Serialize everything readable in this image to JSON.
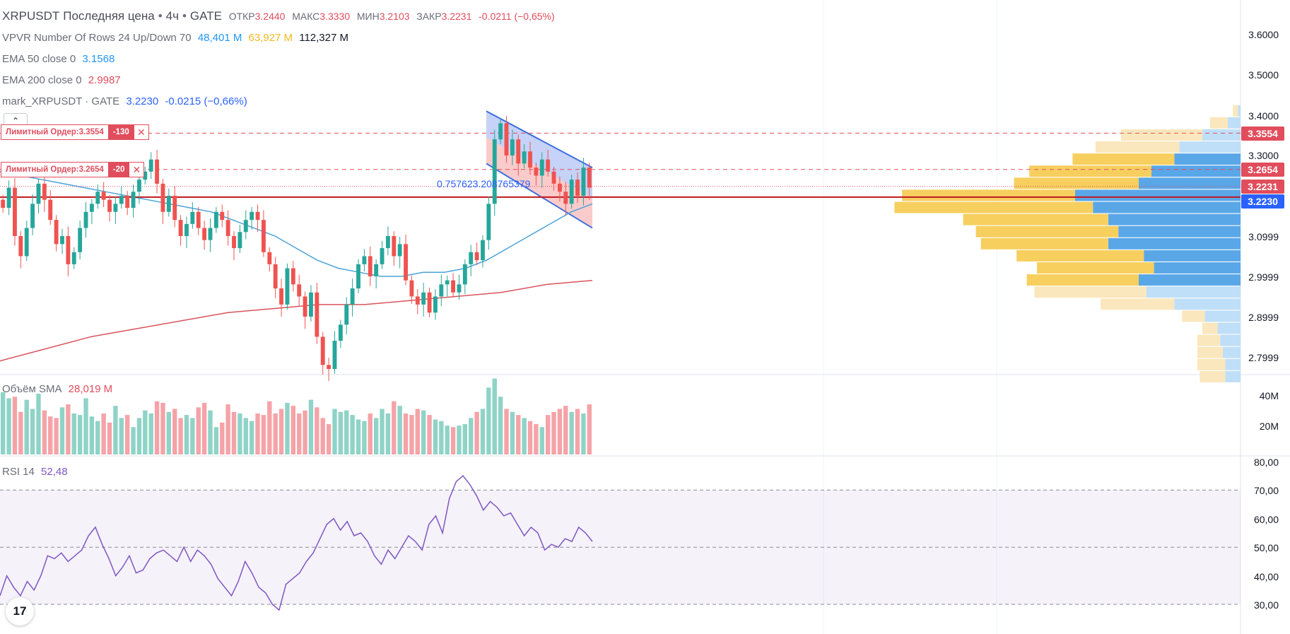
{
  "header": {
    "symbol": "XRPUSDT",
    "price_type": "Последняя цена",
    "interval": "4ч",
    "exchange": "GATE",
    "separator": "•",
    "open_label": "ОТКР",
    "open": "3.2440",
    "high_label": "МАКС",
    "high": "3.3330",
    "low_label": "МИН",
    "low": "3.2103",
    "close_label": "ЗАКР",
    "close": "3.2231",
    "change": "-0.0211 (−0,65%)"
  },
  "indicators": {
    "vpvr": {
      "label": "VPVR Number Of Rows 24 Up/Down 70",
      "up": "48,401 M",
      "down": "63,927 M",
      "total": "112,327 M"
    },
    "ema50": {
      "label": "EMA 50 close 0",
      "value": "3.1568"
    },
    "ema200": {
      "label": "EMA 200 close 0",
      "value": "2.9987"
    },
    "mark": {
      "label": "mark_XRPUSDT · GATE",
      "value": "3.2230",
      "change": "-0.0215 (−0,66%)"
    },
    "volume": {
      "label": "Объём SMA",
      "value": "28,019 M"
    },
    "rsi": {
      "label": "RSI 14",
      "value": "52,48"
    }
  },
  "orders": [
    {
      "label": "Лимитный Ордер:3.3554",
      "qty": "-130",
      "close_glyph": "✕"
    },
    {
      "label": "Лимитный Ордер:3.2654",
      "qty": "-20",
      "close_glyph": "✕"
    }
  ],
  "fib_label": "0.757623.208765379",
  "collapse_glyph": "⌃",
  "logo_text": "17",
  "price_axis": [
    "3.6000",
    "3.5000",
    "3.4000",
    "3.3000",
    "3.0999",
    "2.9999",
    "2.8999",
    "2.7999"
  ],
  "volume_axis": [
    "40M",
    "20M"
  ],
  "rsi_axis": [
    "80,00",
    "70,00",
    "60,00",
    "50,00",
    "40,00",
    "30,00"
  ],
  "price_labels": [
    {
      "value": "3.3554",
      "color": "#e14d5c"
    },
    {
      "value": "3.2654",
      "color": "#e14d5c"
    },
    {
      "value": "3.2231",
      "color": "#e14d5c"
    },
    {
      "value": "3.2230",
      "color": "#2962ff"
    }
  ],
  "colors": {
    "up": "#26a69a",
    "down": "#ef5350",
    "ema50": "#4aa3d9",
    "ema200": "#d9545c",
    "rsi": "#7e57c2",
    "vp_up": "#5aa7e8",
    "vp_down": "#f7cf5f",
    "channel": "#3d6fde"
  },
  "chart_data": [
    {
      "type": "candlestick",
      "title": "XRPUSDT Последняя цена • 4ч • GATE",
      "ylim": [
        2.76,
        3.64
      ],
      "closes": [
        3.17,
        3.22,
        3.1,
        3.05,
        3.12,
        3.18,
        3.23,
        3.19,
        3.14,
        3.08,
        3.1,
        3.03,
        3.06,
        3.12,
        3.16,
        3.18,
        3.21,
        3.19,
        3.16,
        3.18,
        3.2,
        3.17,
        3.21,
        3.24,
        3.26,
        3.29,
        3.23,
        3.16,
        3.2,
        3.14,
        3.1,
        3.13,
        3.16,
        3.12,
        3.09,
        3.12,
        3.16,
        3.14,
        3.1,
        3.07,
        3.11,
        3.14,
        3.16,
        3.14,
        3.06,
        3.03,
        2.97,
        2.93,
        3.02,
        2.98,
        2.95,
        2.9,
        2.96,
        2.85,
        2.78,
        2.77,
        2.84,
        2.88,
        2.93,
        2.97,
        3.03,
        3.05,
        3.0,
        3.03,
        3.07,
        3.1,
        3.05,
        3.08,
        2.99,
        2.95,
        2.93,
        2.96,
        2.91,
        2.95,
        2.98,
        2.99,
        2.96,
        2.98,
        3.03,
        3.06,
        3.04,
        3.09,
        3.18,
        3.34,
        3.38,
        3.3,
        3.34,
        3.28,
        3.31,
        3.27,
        3.25,
        3.29,
        3.26,
        3.23,
        3.21,
        3.18,
        3.24,
        3.2,
        3.27,
        3.22
      ],
      "ema50": [
        3.26,
        3.25,
        3.24,
        3.23,
        3.22,
        3.21,
        3.2,
        3.19,
        3.18,
        3.17,
        3.16,
        3.14,
        3.12,
        3.1,
        3.07,
        3.04,
        3.02,
        3.01,
        3.0,
        3.0,
        3.01,
        3.01,
        3.02,
        3.04,
        3.07,
        3.1,
        3.13,
        3.16,
        3.18
      ],
      "ema200": [
        2.79,
        2.82,
        2.85,
        2.87,
        2.89,
        2.91,
        2.92,
        2.93,
        2.93,
        2.94,
        2.95,
        2.96,
        2.98,
        2.99
      ],
      "channel_upper": [
        3.41,
        3.27
      ],
      "channel_lower": [
        3.28,
        3.12
      ],
      "horizontal_levels": [
        3.3554,
        3.2654,
        3.2231,
        3.223
      ],
      "volume_profile": [
        {
          "price": 3.41,
          "up": 1,
          "down": 2
        },
        {
          "price": 3.38,
          "up": 5,
          "down": 7
        },
        {
          "price": 3.35,
          "up": 15,
          "down": 32
        },
        {
          "price": 3.32,
          "up": 24,
          "down": 33
        },
        {
          "price": 3.29,
          "up": 26,
          "down": 40
        },
        {
          "price": 3.26,
          "up": 35,
          "down": 48
        },
        {
          "price": 3.23,
          "up": 40,
          "down": 49
        },
        {
          "price": 3.2,
          "up": 65,
          "down": 68
        },
        {
          "price": 3.17,
          "up": 58,
          "down": 78
        },
        {
          "price": 3.14,
          "up": 52,
          "down": 57
        },
        {
          "price": 3.11,
          "up": 48,
          "down": 56
        },
        {
          "price": 3.08,
          "up": 52,
          "down": 50
        },
        {
          "price": 3.05,
          "up": 38,
          "down": 50
        },
        {
          "price": 3.02,
          "up": 34,
          "down": 46
        },
        {
          "price": 2.99,
          "up": 40,
          "down": 44
        },
        {
          "price": 2.96,
          "up": 37,
          "down": 44
        },
        {
          "price": 2.93,
          "up": 26,
          "down": 29
        },
        {
          "price": 2.9,
          "up": 14,
          "down": 9
        },
        {
          "price": 2.87,
          "up": 9,
          "down": 6
        },
        {
          "price": 2.84,
          "up": 8,
          "down": 9
        },
        {
          "price": 2.81,
          "up": 7,
          "down": 10
        },
        {
          "price": 2.78,
          "up": 6,
          "down": 11
        },
        {
          "price": 2.75,
          "up": 6,
          "down": 10
        }
      ]
    },
    {
      "type": "bar",
      "title": "Объём SMA",
      "ylim": [
        0,
        50
      ],
      "values": [
        41,
        37,
        38,
        28,
        36,
        30,
        40,
        29,
        25,
        24,
        31,
        33,
        27,
        26,
        37,
        25,
        22,
        27,
        21,
        32,
        24,
        26,
        18,
        24,
        29,
        27,
        35,
        34,
        28,
        30,
        24,
        26,
        24,
        31,
        34,
        29,
        18,
        21,
        33,
        28,
        27,
        24,
        22,
        27,
        26,
        35,
        27,
        30,
        34,
        32,
        27,
        29,
        36,
        31,
        24,
        20,
        30,
        28,
        29,
        26,
        23,
        22,
        27,
        24,
        30,
        27,
        35,
        32,
        27,
        26,
        30,
        29,
        26,
        23,
        22,
        19,
        18,
        19,
        20,
        24,
        28,
        30,
        44,
        50,
        38,
        30,
        28,
        26,
        24,
        22,
        20,
        18,
        26,
        28,
        30,
        32,
        28,
        30,
        27,
        33
      ]
    },
    {
      "type": "line",
      "title": "RSI 14",
      "ylim": [
        26,
        82
      ],
      "values": [
        33,
        40,
        36,
        33,
        38,
        35,
        40,
        47,
        46,
        48,
        45,
        47,
        49,
        54,
        57,
        51,
        46,
        40,
        43,
        47,
        41,
        42,
        46,
        48,
        49,
        47,
        45,
        50,
        45,
        49,
        47,
        44,
        39,
        36,
        33,
        38,
        45,
        41,
        36,
        34,
        30,
        28,
        37,
        39,
        41,
        45,
        48,
        53,
        58,
        60,
        56,
        59,
        54,
        55,
        52,
        47,
        44,
        49,
        46,
        50,
        54,
        52,
        49,
        58,
        61,
        55,
        67,
        73,
        75,
        72,
        68,
        63,
        66,
        64,
        61,
        62,
        58,
        54,
        57,
        55,
        49,
        51,
        50,
        53,
        52,
        57,
        55,
        52
      ]
    }
  ]
}
